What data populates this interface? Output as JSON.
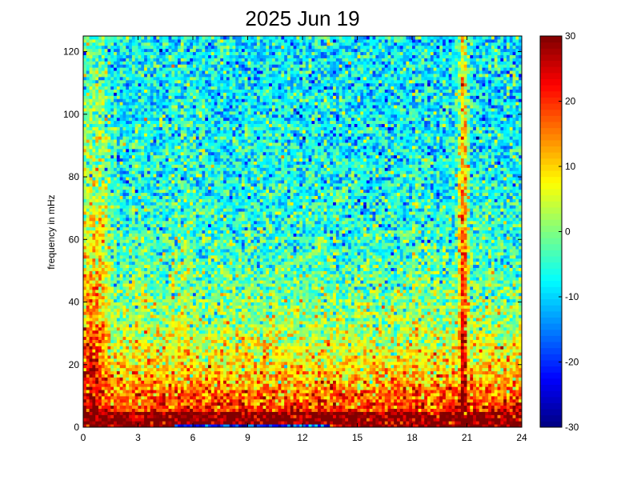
{
  "chart_data": {
    "type": "heatmap",
    "title": "2025 Jun 19",
    "xlabel": "",
    "ylabel": "frequency in mHz",
    "xlim": [
      0,
      24
    ],
    "ylim": [
      0,
      125
    ],
    "x_ticks": [
      0,
      3,
      6,
      9,
      12,
      15,
      18,
      21,
      24
    ],
    "y_ticks": [
      0,
      20,
      40,
      60,
      80,
      100,
      120
    ],
    "colorbar": {
      "colormap": "jet",
      "clim": [
        -30,
        30
      ],
      "ticks": [
        30,
        20,
        10,
        0,
        -10,
        -20,
        -30
      ]
    },
    "grid_resolution": {
      "time_bins": 144,
      "freq_bins": 125
    },
    "description_model": {
      "baseline": {
        "low_freq_floor_db": 27,
        "background_db_at_high_freq": -9,
        "decay_scale_mhz": 28
      },
      "floor_band": {
        "freq_mhz": [
          0,
          5
        ],
        "level_db": 30
      },
      "dark_stripe": {
        "time_h": [
          5,
          13.5
        ],
        "freq_mhz": [
          0,
          1
        ],
        "level_db": -20
      },
      "events": [
        {
          "time_h": 0.5,
          "width_h": 1.2,
          "peak_db": 32,
          "height_mhz": 70
        },
        {
          "time_h": 3.0,
          "width_h": 1.5,
          "peak_db": 24,
          "height_mhz": 35
        },
        {
          "time_h": 5.5,
          "width_h": 1.2,
          "peak_db": 24,
          "height_mhz": 40
        },
        {
          "time_h": 8.0,
          "width_h": 1.5,
          "peak_db": 20,
          "height_mhz": 30
        },
        {
          "time_h": 14.0,
          "width_h": 0.4,
          "peak_db": 22,
          "height_mhz": 16
        },
        {
          "time_h": 18.2,
          "width_h": 0.45,
          "peak_db": 30,
          "height_mhz": 35
        },
        {
          "time_h": 20.8,
          "width_h": 0.3,
          "peak_db": 34,
          "height_mhz": 125
        },
        {
          "time_h": 22.5,
          "width_h": 1.2,
          "peak_db": 22,
          "height_mhz": 14
        }
      ],
      "noise_db": 6
    }
  },
  "colors": {
    "background": "#ffffff",
    "axes": "#000000"
  }
}
